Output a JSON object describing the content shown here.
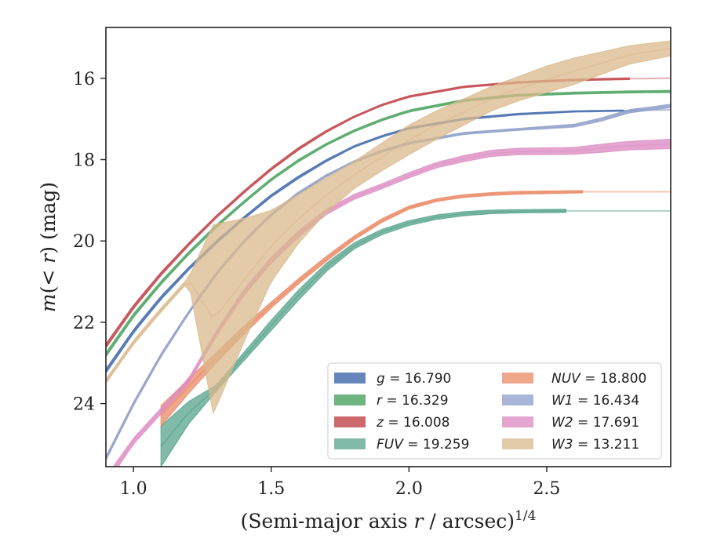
{
  "chart_data": {
    "type": "line",
    "xlabel": "(Semi-major axis r / arcsec)^{1/4}",
    "ylabel": "m(< r) (mag)",
    "xlim": [
      0.9,
      2.95
    ],
    "ylim": [
      25.55,
      14.75
    ],
    "y_inverted": true,
    "x_ticks": [
      1.0,
      1.5,
      2.0,
      2.5
    ],
    "x_tick_labels": [
      "1.0",
      "1.5",
      "2.0",
      "2.5"
    ],
    "y_ticks": [
      16,
      18,
      20,
      22,
      24
    ],
    "y_tick_labels": [
      "16",
      "18",
      "20",
      "22",
      "24"
    ],
    "grid": false,
    "legend_position": "lower-right",
    "legend_columns": 2,
    "series": [
      {
        "name": "g = 16.790",
        "color": "#4c72b0",
        "alpha": 0.85,
        "x_start": 0.9,
        "data_end": 2.78,
        "lower": [
          [
            0.9,
            23.25
          ],
          [
            1.0,
            22.27
          ],
          [
            1.1,
            21.44
          ],
          [
            1.2,
            20.72
          ],
          [
            1.3,
            20.07
          ],
          [
            1.4,
            19.47
          ],
          [
            1.5,
            18.92
          ],
          [
            1.6,
            18.46
          ],
          [
            1.7,
            18.05
          ],
          [
            1.8,
            17.7
          ],
          [
            1.9,
            17.45
          ],
          [
            2.0,
            17.25
          ],
          [
            2.2,
            17.02
          ],
          [
            2.4,
            16.9
          ],
          [
            2.6,
            16.83
          ],
          [
            2.78,
            16.81
          ],
          [
            2.95,
            16.79
          ]
        ],
        "upper": [
          [
            0.9,
            23.15
          ],
          [
            1.0,
            22.18
          ],
          [
            1.1,
            21.36
          ],
          [
            1.2,
            20.65
          ],
          [
            1.3,
            20.0
          ],
          [
            1.4,
            19.41
          ],
          [
            1.5,
            18.86
          ],
          [
            1.6,
            18.4
          ],
          [
            1.7,
            18.0
          ],
          [
            1.8,
            17.66
          ],
          [
            1.9,
            17.41
          ],
          [
            2.0,
            17.21
          ],
          [
            2.2,
            16.98
          ],
          [
            2.4,
            16.86
          ],
          [
            2.6,
            16.8
          ],
          [
            2.78,
            16.78
          ],
          [
            2.95,
            16.76
          ]
        ]
      },
      {
        "name": "r = 16.329",
        "color": "#55a868",
        "alpha": 0.85,
        "x_start": 0.9,
        "data_end": 2.95,
        "lower": [
          [
            0.9,
            22.85
          ],
          [
            1.0,
            21.88
          ],
          [
            1.1,
            21.07
          ],
          [
            1.2,
            20.34
          ],
          [
            1.3,
            19.68
          ],
          [
            1.4,
            19.08
          ],
          [
            1.5,
            18.52
          ],
          [
            1.6,
            18.05
          ],
          [
            1.7,
            17.65
          ],
          [
            1.8,
            17.32
          ],
          [
            1.9,
            17.05
          ],
          [
            2.0,
            16.83
          ],
          [
            2.2,
            16.57
          ],
          [
            2.4,
            16.44
          ],
          [
            2.6,
            16.39
          ],
          [
            2.8,
            16.36
          ],
          [
            2.95,
            16.35
          ]
        ],
        "upper": [
          [
            0.9,
            22.75
          ],
          [
            1.0,
            21.79
          ],
          [
            1.1,
            20.99
          ],
          [
            1.2,
            20.27
          ],
          [
            1.3,
            19.61
          ],
          [
            1.4,
            19.02
          ],
          [
            1.5,
            18.46
          ],
          [
            1.6,
            17.99
          ],
          [
            1.7,
            17.6
          ],
          [
            1.8,
            17.27
          ],
          [
            1.9,
            17.0
          ],
          [
            2.0,
            16.78
          ],
          [
            2.2,
            16.52
          ],
          [
            2.4,
            16.39
          ],
          [
            2.6,
            16.34
          ],
          [
            2.8,
            16.31
          ],
          [
            2.95,
            16.3
          ]
        ]
      },
      {
        "name": "z = 16.008",
        "color": "#c44e52",
        "alpha": 0.85,
        "x_start": 0.9,
        "data_end": 2.8,
        "lower": [
          [
            0.9,
            22.63
          ],
          [
            1.0,
            21.67
          ],
          [
            1.1,
            20.85
          ],
          [
            1.2,
            20.12
          ],
          [
            1.3,
            19.44
          ],
          [
            1.4,
            18.83
          ],
          [
            1.5,
            18.26
          ],
          [
            1.6,
            17.76
          ],
          [
            1.7,
            17.33
          ],
          [
            1.8,
            16.97
          ],
          [
            1.9,
            16.68
          ],
          [
            2.0,
            16.47
          ],
          [
            2.2,
            16.23
          ],
          [
            2.4,
            16.12
          ],
          [
            2.6,
            16.06
          ],
          [
            2.8,
            16.03
          ],
          [
            2.95,
            16.02
          ]
        ],
        "upper": [
          [
            0.9,
            22.53
          ],
          [
            1.0,
            21.58
          ],
          [
            1.1,
            20.77
          ],
          [
            1.2,
            20.05
          ],
          [
            1.3,
            19.38
          ],
          [
            1.4,
            18.77
          ],
          [
            1.5,
            18.2
          ],
          [
            1.6,
            17.7
          ],
          [
            1.7,
            17.28
          ],
          [
            1.8,
            16.93
          ],
          [
            1.9,
            16.64
          ],
          [
            2.0,
            16.43
          ],
          [
            2.2,
            16.19
          ],
          [
            2.4,
            16.08
          ],
          [
            2.6,
            16.02
          ],
          [
            2.8,
            15.99
          ],
          [
            2.95,
            15.98
          ]
        ]
      },
      {
        "name": "FUV = 19.259",
        "color": "#4c9c84",
        "alpha": 0.7,
        "x_start": 1.1,
        "data_end": 2.57,
        "lower": [
          [
            1.1,
            25.55
          ],
          [
            1.2,
            24.5
          ],
          [
            1.3,
            23.7
          ],
          [
            1.4,
            22.95
          ],
          [
            1.5,
            22.2
          ],
          [
            1.6,
            21.45
          ],
          [
            1.7,
            20.75
          ],
          [
            1.8,
            20.2
          ],
          [
            1.9,
            19.85
          ],
          [
            2.0,
            19.62
          ],
          [
            2.1,
            19.47
          ],
          [
            2.2,
            19.38
          ],
          [
            2.3,
            19.33
          ],
          [
            2.4,
            19.31
          ],
          [
            2.57,
            19.3
          ]
        ],
        "upper": [
          [
            1.1,
            24.55
          ],
          [
            1.2,
            23.95
          ],
          [
            1.3,
            23.55
          ],
          [
            1.4,
            22.75
          ],
          [
            1.5,
            21.95
          ],
          [
            1.6,
            21.2
          ],
          [
            1.7,
            20.55
          ],
          [
            1.8,
            20.05
          ],
          [
            1.9,
            19.72
          ],
          [
            2.0,
            19.5
          ],
          [
            2.1,
            19.36
          ],
          [
            2.2,
            19.28
          ],
          [
            2.3,
            19.24
          ],
          [
            2.4,
            19.23
          ],
          [
            2.57,
            19.22
          ]
        ]
      },
      {
        "name": "NUV = 18.800",
        "color": "#e8825a",
        "alpha": 0.7,
        "x_start": 1.1,
        "data_end": 2.63,
        "lower": [
          [
            1.1,
            24.55
          ],
          [
            1.2,
            23.75
          ],
          [
            1.3,
            23.0
          ],
          [
            1.4,
            22.3
          ],
          [
            1.5,
            21.65
          ],
          [
            1.6,
            21.05
          ],
          [
            1.7,
            20.5
          ],
          [
            1.8,
            19.98
          ],
          [
            1.9,
            19.55
          ],
          [
            2.0,
            19.22
          ],
          [
            2.1,
            19.03
          ],
          [
            2.2,
            18.93
          ],
          [
            2.3,
            18.88
          ],
          [
            2.4,
            18.85
          ],
          [
            2.63,
            18.82
          ]
        ],
        "upper": [
          [
            1.1,
            24.05
          ],
          [
            1.2,
            23.4
          ],
          [
            1.3,
            22.75
          ],
          [
            1.4,
            22.1
          ],
          [
            1.5,
            21.5
          ],
          [
            1.6,
            20.92
          ],
          [
            1.7,
            20.38
          ],
          [
            1.8,
            19.88
          ],
          [
            1.9,
            19.46
          ],
          [
            2.0,
            19.14
          ],
          [
            2.1,
            18.96
          ],
          [
            2.2,
            18.86
          ],
          [
            2.3,
            18.81
          ],
          [
            2.4,
            18.78
          ],
          [
            2.63,
            18.76
          ]
        ]
      },
      {
        "name": "W1 = 16.434",
        "color": "#8c9cc8",
        "alpha": 0.75,
        "x_start": 0.9,
        "data_end": 2.95,
        "lower": [
          [
            0.9,
            25.4
          ],
          [
            1.0,
            24.05
          ],
          [
            1.1,
            22.85
          ],
          [
            1.2,
            21.8
          ],
          [
            1.3,
            20.85
          ],
          [
            1.4,
            20.05
          ],
          [
            1.5,
            19.38
          ],
          [
            1.6,
            18.85
          ],
          [
            1.7,
            18.42
          ],
          [
            1.8,
            18.08
          ],
          [
            1.9,
            17.82
          ],
          [
            2.0,
            17.62
          ],
          [
            2.2,
            17.38
          ],
          [
            2.4,
            17.28
          ],
          [
            2.6,
            17.2
          ],
          [
            2.7,
            17.05
          ],
          [
            2.8,
            16.85
          ],
          [
            2.95,
            16.72
          ]
        ],
        "upper": [
          [
            0.9,
            25.3
          ],
          [
            1.0,
            23.96
          ],
          [
            1.1,
            22.77
          ],
          [
            1.2,
            21.73
          ],
          [
            1.3,
            20.78
          ],
          [
            1.4,
            19.99
          ],
          [
            1.5,
            19.32
          ],
          [
            1.6,
            18.79
          ],
          [
            1.7,
            18.37
          ],
          [
            1.8,
            18.03
          ],
          [
            1.9,
            17.77
          ],
          [
            2.0,
            17.57
          ],
          [
            2.2,
            17.33
          ],
          [
            2.4,
            17.23
          ],
          [
            2.6,
            17.13
          ],
          [
            2.7,
            16.97
          ],
          [
            2.8,
            16.77
          ],
          [
            2.95,
            16.64
          ]
        ]
      },
      {
        "name": "W2 = 17.691",
        "color": "#dd8ec4",
        "alpha": 0.8,
        "x_start": 0.9,
        "data_end": 2.95,
        "lower": [
          [
            0.9,
            26.0
          ],
          [
            1.0,
            25.0
          ],
          [
            1.2,
            23.5
          ],
          [
            1.3,
            22.35
          ],
          [
            1.4,
            21.35
          ],
          [
            1.5,
            20.55
          ],
          [
            1.6,
            19.9
          ],
          [
            1.7,
            19.35
          ],
          [
            1.8,
            18.98
          ],
          [
            1.9,
            18.72
          ],
          [
            2.0,
            18.45
          ],
          [
            2.1,
            18.2
          ],
          [
            2.2,
            18.05
          ],
          [
            2.3,
            17.92
          ],
          [
            2.4,
            17.88
          ],
          [
            2.6,
            17.87
          ],
          [
            2.7,
            17.82
          ],
          [
            2.8,
            17.76
          ],
          [
            2.95,
            17.73
          ]
        ],
        "upper": [
          [
            0.9,
            25.8
          ],
          [
            1.0,
            24.85
          ],
          [
            1.2,
            23.38
          ],
          [
            1.3,
            22.22
          ],
          [
            1.4,
            21.2
          ],
          [
            1.5,
            20.4
          ],
          [
            1.6,
            19.75
          ],
          [
            1.7,
            19.22
          ],
          [
            1.8,
            18.86
          ],
          [
            1.9,
            18.6
          ],
          [
            2.0,
            18.32
          ],
          [
            2.1,
            18.07
          ],
          [
            2.2,
            17.9
          ],
          [
            2.3,
            17.77
          ],
          [
            2.4,
            17.72
          ],
          [
            2.6,
            17.7
          ],
          [
            2.7,
            17.62
          ],
          [
            2.8,
            17.55
          ],
          [
            2.95,
            17.5
          ]
        ]
      },
      {
        "name": "W3 = 13.211",
        "color": "#d9b88c",
        "alpha": 0.75,
        "x_start": 0.9,
        "data_end": 2.95,
        "lower": [
          [
            0.9,
            23.5
          ],
          [
            1.0,
            22.55
          ],
          [
            1.1,
            21.75
          ],
          [
            1.2,
            21.0
          ],
          [
            1.29,
            24.25
          ],
          [
            1.4,
            22.5
          ],
          [
            1.5,
            21.0
          ],
          [
            1.6,
            20.05
          ],
          [
            1.7,
            19.3
          ],
          [
            1.8,
            18.72
          ],
          [
            1.9,
            18.28
          ],
          [
            2.0,
            17.88
          ],
          [
            2.1,
            17.5
          ],
          [
            2.2,
            17.15
          ],
          [
            2.3,
            16.8
          ],
          [
            2.4,
            16.55
          ],
          [
            2.5,
            16.35
          ],
          [
            2.6,
            16.15
          ],
          [
            2.7,
            15.9
          ],
          [
            2.8,
            15.65
          ],
          [
            2.95,
            15.45
          ]
        ],
        "upper": [
          [
            0.9,
            23.4
          ],
          [
            1.0,
            22.45
          ],
          [
            1.1,
            21.65
          ],
          [
            1.2,
            20.9
          ],
          [
            1.29,
            19.6
          ],
          [
            1.4,
            19.45
          ],
          [
            1.5,
            19.25
          ],
          [
            1.6,
            18.85
          ],
          [
            1.7,
            18.45
          ],
          [
            1.8,
            18.05
          ],
          [
            1.9,
            17.6
          ],
          [
            2.0,
            17.15
          ],
          [
            2.1,
            16.8
          ],
          [
            2.2,
            16.5
          ],
          [
            2.3,
            16.2
          ],
          [
            2.4,
            15.95
          ],
          [
            2.5,
            15.7
          ],
          [
            2.6,
            15.5
          ],
          [
            2.7,
            15.35
          ],
          [
            2.8,
            15.2
          ],
          [
            2.95,
            15.08
          ]
        ]
      }
    ]
  },
  "legend_col1_names": [
    "g",
    "r",
    "z",
    "FUV"
  ],
  "legend_col1_values": [
    "16.790",
    "16.329",
    "16.008",
    "19.259"
  ],
  "legend_col2_names": [
    "NUV",
    "W1",
    "W2",
    "W3"
  ],
  "legend_col2_values": [
    "18.800",
    "16.434",
    "17.691",
    "13.211"
  ]
}
